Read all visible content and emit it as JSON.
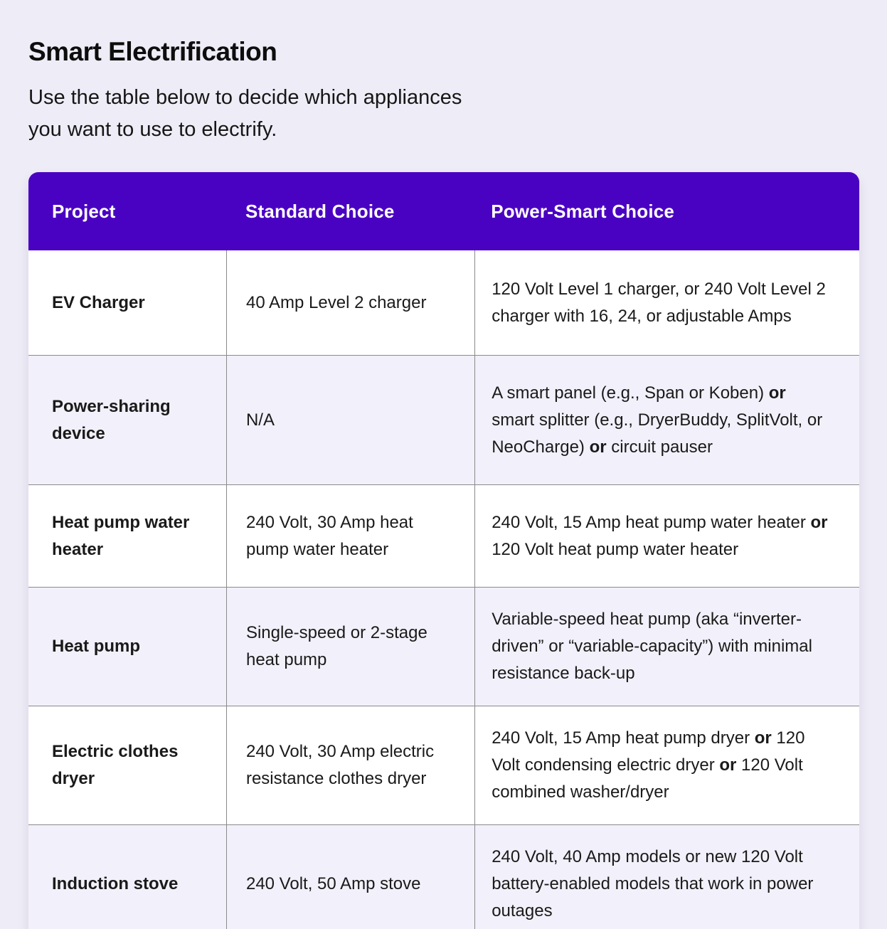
{
  "page": {
    "title": "Smart Electrification",
    "subtitle": "Use the table below to decide which appliances you want to use to electrify."
  },
  "colors": {
    "page_background": "#EEECF6",
    "header_background": "#4A02C2",
    "header_text": "#FFFFFF",
    "row_background": "#FFFFFF",
    "row_alt_background": "#F2F0FA",
    "divider": "#8A8A8A",
    "body_text": "#1A1A1A"
  },
  "table": {
    "headers": [
      "Project",
      "Standard Choice",
      "Power-Smart Choice"
    ],
    "rows": [
      {
        "project": "EV Charger",
        "standard": [
          {
            "t": "40 Amp Level 2 charger"
          }
        ],
        "smart": [
          {
            "t": "120 Volt Level 1 charger, or 240 Volt Level 2 charger with 16, 24, or adjustable Amps"
          }
        ]
      },
      {
        "project": "Power-sharing device",
        "standard": [
          {
            "t": "N/A"
          }
        ],
        "smart": [
          {
            "t": "A smart panel (e.g., Span or Koben) "
          },
          {
            "t": "or",
            "b": true
          },
          {
            "t": " smart splitter (e.g., DryerBuddy, SplitVolt, or NeoCharge) "
          },
          {
            "t": "or",
            "b": true
          },
          {
            "t": " circuit pauser"
          }
        ]
      },
      {
        "project": "Heat pump water heater",
        "standard": [
          {
            "t": "240 Volt, 30 Amp heat pump water heater"
          }
        ],
        "smart": [
          {
            "t": "240 Volt, 15 Amp heat pump water heater "
          },
          {
            "t": "or",
            "b": true
          },
          {
            "t": " 120 Volt heat pump water heater"
          }
        ]
      },
      {
        "project": "Heat pump",
        "standard": [
          {
            "t": "Single-speed or 2-stage heat pump"
          }
        ],
        "smart": [
          {
            "t": "Variable-speed heat pump (aka “inverter-driven” or “variable-capacity”) with minimal resistance back-up"
          }
        ]
      },
      {
        "project": "Electric clothes dryer",
        "standard": [
          {
            "t": "240 Volt, 30 Amp electric resistance clothes dryer"
          }
        ],
        "smart": [
          {
            "t": "240 Volt, 15 Amp heat pump dryer "
          },
          {
            "t": "or",
            "b": true
          },
          {
            "t": " 120 Volt condensing electric dryer "
          },
          {
            "t": "or",
            "b": true
          },
          {
            "t": " 120 Volt combined washer/dryer"
          }
        ]
      },
      {
        "project": "Induction stove",
        "standard": [
          {
            "t": "240 Volt, 50 Amp stove"
          }
        ],
        "smart": [
          {
            "t": "240 Volt, 40 Amp models or new 120 Volt battery-enabled models that work in power outages"
          }
        ]
      }
    ]
  }
}
